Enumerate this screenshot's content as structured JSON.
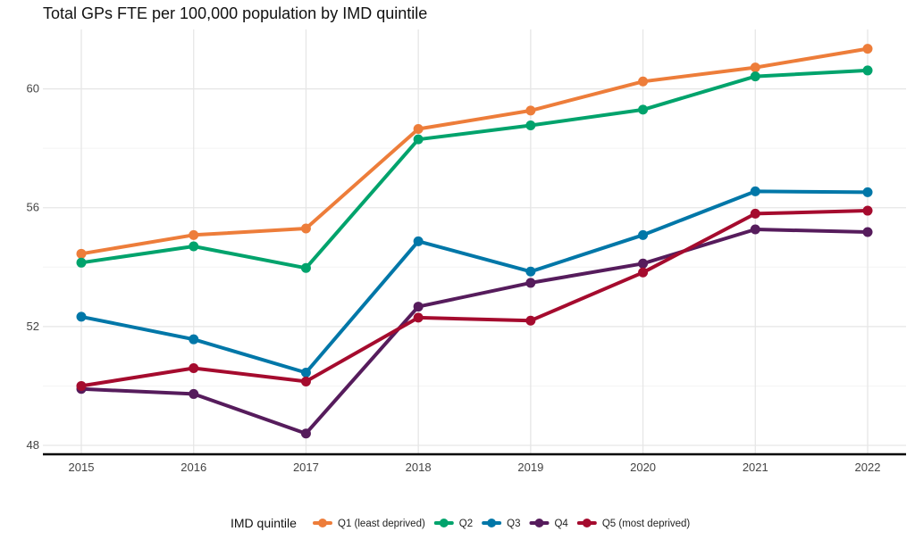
{
  "chart_data": {
    "type": "line",
    "title": "Total GPs FTE per 100,000 population by IMD quintile",
    "xlabel": "",
    "ylabel": "",
    "x": [
      2015,
      2016,
      2017,
      2018,
      2019,
      2020,
      2021,
      2022
    ],
    "x_tick_labels": [
      "2015",
      "2016",
      "2017",
      "2018",
      "2019",
      "2020",
      "2021",
      "2022"
    ],
    "y_ticks": [
      48,
      52,
      56,
      60
    ],
    "y_tick_labels": [
      "48",
      "52",
      "56",
      "60"
    ],
    "ylim": [
      47.7,
      62.0
    ],
    "grid": true,
    "legend": {
      "title": "IMD quintile",
      "position": "bottom"
    },
    "series": [
      {
        "name": "Q1 (least deprived)",
        "color": "#ED7D3A",
        "values": [
          54.45,
          55.08,
          55.3,
          58.65,
          59.27,
          60.25,
          60.72,
          61.35
        ]
      },
      {
        "name": "Q2",
        "color": "#00A36C",
        "values": [
          54.15,
          54.7,
          53.97,
          58.3,
          58.77,
          59.3,
          60.42,
          60.62
        ]
      },
      {
        "name": "Q3",
        "color": "#0077A8",
        "values": [
          52.33,
          51.57,
          50.45,
          54.87,
          53.85,
          55.08,
          56.55,
          56.52
        ]
      },
      {
        "name": "Q4",
        "color": "#561C5C",
        "values": [
          49.9,
          49.73,
          48.4,
          52.67,
          53.47,
          54.12,
          55.27,
          55.18
        ]
      },
      {
        "name": "Q5 (most deprived)",
        "color": "#A50B2E",
        "values": [
          50.0,
          50.6,
          50.15,
          52.3,
          52.2,
          53.82,
          55.8,
          55.9
        ]
      }
    ]
  }
}
